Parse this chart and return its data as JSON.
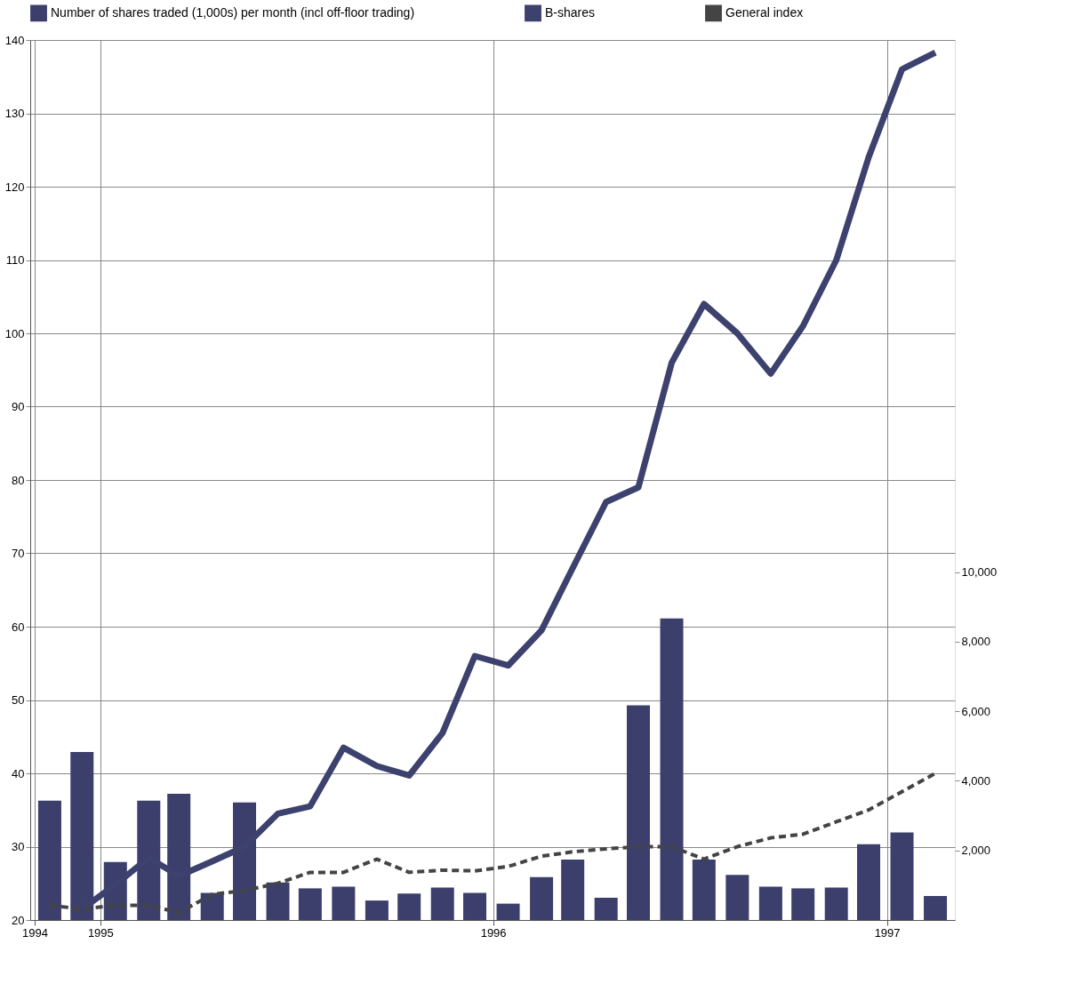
{
  "chart_data": {
    "type": "line",
    "x": [
      "1994-11-15",
      "1994-12-15",
      "1995-01-15",
      "1995-02-15",
      "1995-03-15",
      "1995-04-15",
      "1995-05-15",
      "1995-06-15",
      "1995-07-15",
      "1995-08-15",
      "1995-09-15",
      "1995-10-15",
      "1995-11-15",
      "1995-12-15",
      "1996-01-15",
      "1996-02-15",
      "1996-03-15",
      "1996-04-15",
      "1996-05-15",
      "1996-06-15",
      "1996-07-15",
      "1996-08-15",
      "1996-09-15",
      "1996-10-15",
      "1996-11-15",
      "1996-12-15",
      "1997-01-15",
      "1997-02-15"
    ],
    "xlim": [
      "1994-11",
      "1997-03"
    ],
    "xticks": [
      {
        "value": "1994-11",
        "label": "1994"
      },
      {
        "value": "1995-01",
        "label": "1995"
      },
      {
        "value": "1996-01",
        "label": "1996"
      },
      {
        "value": "1997-01",
        "label": "1997"
      }
    ],
    "ylim": [
      20,
      140
    ],
    "yticks": [
      20,
      30,
      40,
      50,
      60,
      70,
      80,
      90,
      100,
      110,
      120,
      130,
      140
    ],
    "y2lim": [
      0,
      25300
    ],
    "y2ticks": [
      {
        "value": 2000,
        "label": "2,000"
      },
      {
        "value": 4000,
        "label": "4,000"
      },
      {
        "value": 6000,
        "label": "6,000"
      },
      {
        "value": 8000,
        "label": "8,000"
      },
      {
        "value": 10000,
        "label": "10,000"
      }
    ],
    "grid": true,
    "legend": "top",
    "series": [
      {
        "name": "Number of shares traded (1,000s) per month (incl off-floor trading)",
        "type": "bar",
        "axis": "y2",
        "color": "#3c3f6c",
        "values": [
          3430,
          4830,
          1670,
          3430,
          3630,
          780,
          3380,
          1080,
          910,
          960,
          560,
          760,
          930,
          780,
          470,
          1230,
          1740,
          640,
          6170,
          8670,
          1740,
          1300,
          960,
          910,
          930,
          2180,
          2520,
          690
        ]
      },
      {
        "name": "B-shares",
        "color": "#3d416e",
        "line_style": "solid",
        "values": [
          null,
          21.5,
          24.8,
          28.5,
          26,
          28,
          30,
          34.5,
          35.5,
          43.5,
          41,
          39.7,
          45.5,
          56,
          54.7,
          59.5,
          68,
          77,
          79,
          96,
          104,
          100,
          94.5,
          101,
          110,
          124,
          136,
          138.3
        ]
      },
      {
        "name": "General index",
        "color": "#444444",
        "line_style": "dashed",
        "values": [
          22,
          21.5,
          22,
          22,
          21,
          23.5,
          24,
          25,
          26.5,
          26.5,
          28.3,
          26.5,
          26.8,
          26.7,
          27.3,
          28.7,
          29.3,
          29.7,
          30,
          30,
          28.3,
          30,
          31.2,
          31.7,
          33.4,
          35,
          37.5,
          40
        ]
      }
    ]
  }
}
